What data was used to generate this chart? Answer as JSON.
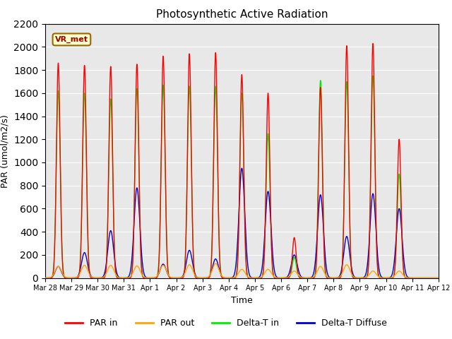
{
  "title": "Photosynthetic Active Radiation",
  "ylabel": "PAR (umol/m2/s)",
  "xlabel": "Time",
  "annotation": "VR_met",
  "ylim": [
    0,
    2200
  ],
  "facecolor": "#e8e8e8",
  "line_colors": {
    "PAR in": "#ff0000",
    "PAR out": "#ffa500",
    "Delta-T in": "#00ee00",
    "Delta-T Diffuse": "#0000cc"
  },
  "x_tick_labels": [
    "Mar 28",
    "Mar 29",
    "Mar 30",
    "Mar 31",
    "Apr 1",
    "Apr 2",
    "Apr 3",
    "Apr 4",
    "Apr 5",
    "Apr 6",
    "Apr 7",
    "Apr 8",
    "Apr 9",
    "Apr 10",
    "Apr 11",
    "Apr 12"
  ],
  "yticks": [
    0,
    200,
    400,
    600,
    800,
    1000,
    1200,
    1400,
    1600,
    1800,
    2000,
    2200
  ],
  "par_in_peaks": [
    1860,
    1840,
    1830,
    1850,
    1920,
    1940,
    1950,
    1760,
    1600,
    350,
    1650,
    2010,
    2030,
    1200,
    0
  ],
  "par_out_peaks": [
    100,
    110,
    110,
    105,
    110,
    115,
    125,
    75,
    75,
    60,
    100,
    115,
    60,
    60,
    0
  ],
  "delta_t_in_peaks": [
    1620,
    1600,
    1550,
    1640,
    1670,
    1660,
    1660,
    1600,
    1250,
    180,
    1710,
    1700,
    1750,
    900,
    0
  ],
  "delta_t_df_peaks": [
    100,
    220,
    410,
    780,
    120,
    240,
    165,
    950,
    750,
    200,
    720,
    360,
    730,
    600,
    0
  ],
  "n_days": 15,
  "ppd": 288
}
